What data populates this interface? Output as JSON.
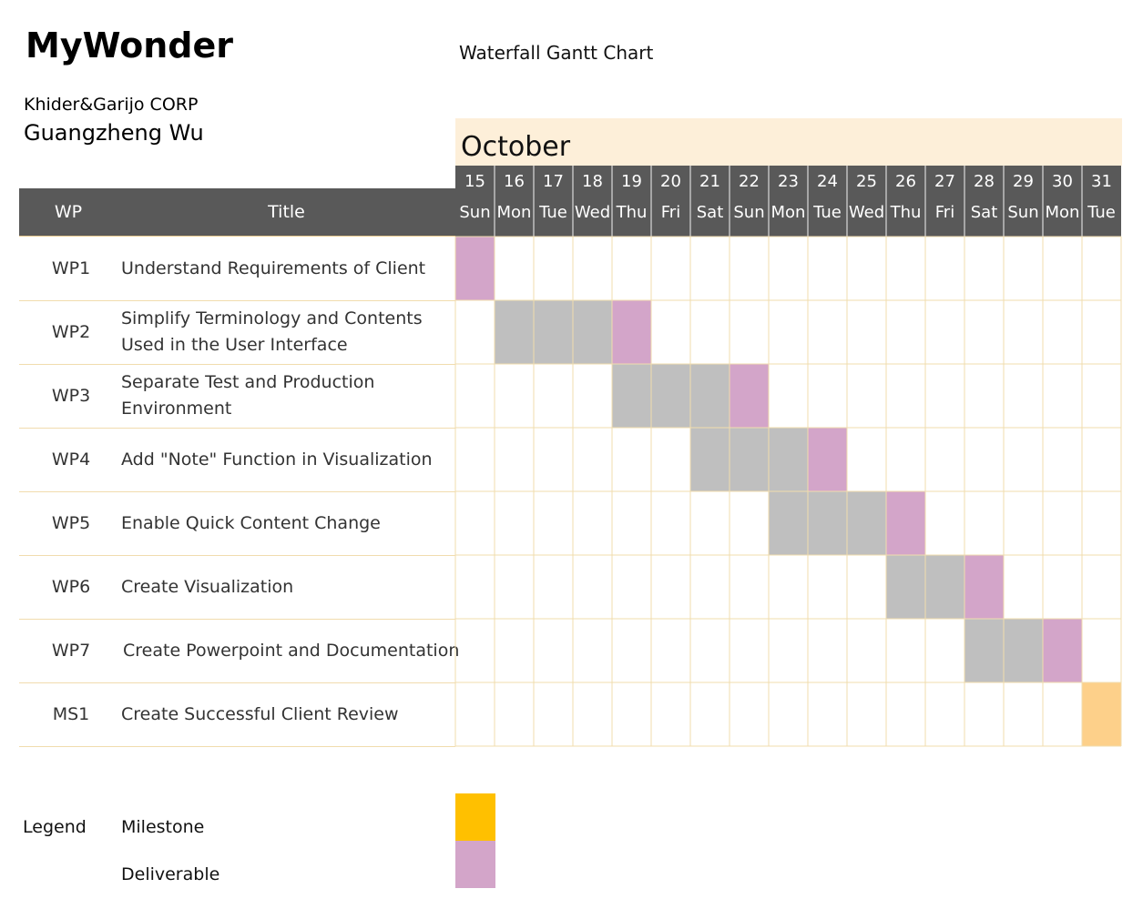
{
  "header": {
    "brand": "MyWonder",
    "chart_title": "Waterfall Gantt Chart",
    "company": "Khider&Garijo CORP",
    "person": "Guangzheng Wu"
  },
  "table": {
    "col_wp": "WP",
    "col_title": "Title"
  },
  "legend": {
    "label": "Legend",
    "milestone": "Milestone",
    "deliverable": "Deliverable"
  },
  "colors": {
    "header_bg": "#595959",
    "month_band": "#fdefd9",
    "grid_line": "#f1dcae",
    "work": "#bfbfbf",
    "deliverable": "#d3a5c9",
    "milestone_cell": "#fdd08a",
    "milestone_legend": "#ffc000"
  },
  "chart_data": {
    "type": "gantt",
    "month": "October",
    "days": [
      {
        "num": "15",
        "name": "Sun"
      },
      {
        "num": "16",
        "name": "Mon"
      },
      {
        "num": "17",
        "name": "Tue"
      },
      {
        "num": "18",
        "name": "Wed"
      },
      {
        "num": "19",
        "name": "Thu"
      },
      {
        "num": "20",
        "name": "Fri"
      },
      {
        "num": "21",
        "name": "Sat"
      },
      {
        "num": "22",
        "name": "Sun"
      },
      {
        "num": "23",
        "name": "Mon"
      },
      {
        "num": "24",
        "name": "Tue"
      },
      {
        "num": "25",
        "name": "Wed"
      },
      {
        "num": "26",
        "name": "Thu"
      },
      {
        "num": "27",
        "name": "Fri"
      },
      {
        "num": "28",
        "name": "Sat"
      },
      {
        "num": "29",
        "name": "Sun"
      },
      {
        "num": "30",
        "name": "Mon"
      },
      {
        "num": "31",
        "name": "Tue"
      }
    ],
    "tasks": [
      {
        "id": "WP1",
        "title": [
          "Understand Requirements of Client"
        ],
        "work_days": [],
        "deliverable_day": 15,
        "milestone_day": null
      },
      {
        "id": "WP2",
        "title": [
          "Simplify Terminology and Contents",
          "Used in the User Interface"
        ],
        "work_days": [
          16,
          17,
          18
        ],
        "deliverable_day": 19,
        "milestone_day": null
      },
      {
        "id": "WP3",
        "title": [
          "Separate Test and Production",
          "Environment"
        ],
        "work_days": [
          19,
          20,
          21
        ],
        "deliverable_day": 22,
        "milestone_day": null
      },
      {
        "id": "WP4",
        "title": [
          "Add \"Note\" Function in Visualization"
        ],
        "work_days": [
          21,
          22,
          23
        ],
        "deliverable_day": 24,
        "milestone_day": null
      },
      {
        "id": "WP5",
        "title": [
          "Enable Quick Content Change"
        ],
        "work_days": [
          23,
          24,
          25
        ],
        "deliverable_day": 26,
        "milestone_day": null
      },
      {
        "id": "WP6",
        "title": [
          "Create Visualization"
        ],
        "work_days": [
          26,
          27
        ],
        "deliverable_day": 28,
        "milestone_day": null
      },
      {
        "id": "WP7",
        "title": [
          "Create Powerpoint and Documentation"
        ],
        "work_days": [
          28,
          29
        ],
        "deliverable_day": 30,
        "milestone_day": null
      },
      {
        "id": "MS1",
        "title": [
          "Create Successful Client Review"
        ],
        "work_days": [],
        "deliverable_day": null,
        "milestone_day": 31
      }
    ]
  }
}
